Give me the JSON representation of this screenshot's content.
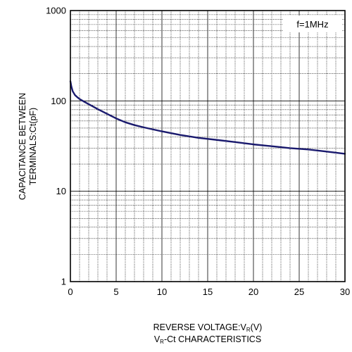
{
  "chart_data": {
    "type": "line",
    "title": "",
    "caption": {
      "pre": "V",
      "sub": "R",
      "post": "-Ct CHARACTERISTICS"
    },
    "xlabel": {
      "pre": "REVERSE VOLTAGE:V",
      "sub": "R",
      "post": "(V)"
    },
    "ylabel": {
      "line1": "CAPACITANCE BETWEEN",
      "line2": "TERMINALS:Ct(pF)"
    },
    "annotation": "f=1MHz",
    "x_scale": "linear",
    "y_scale": "log",
    "xlim": [
      0,
      30
    ],
    "ylim": [
      1,
      1000
    ],
    "x_ticks": [
      0,
      5,
      10,
      15,
      20,
      25,
      30
    ],
    "x_tick_labels": [
      "0",
      "5",
      "10",
      "15",
      "20",
      "25",
      "30"
    ],
    "y_ticks": [
      1,
      10,
      100,
      1000
    ],
    "y_tick_labels": [
      "1",
      "10",
      "100",
      "1000"
    ],
    "grid": true,
    "colors": {
      "curve": "#1a1a6e",
      "grid": "#000000",
      "axes": "#000000"
    },
    "series": [
      {
        "x": [
          0,
          0.1,
          0.25,
          0.5,
          0.75,
          1,
          1.5,
          2,
          3,
          4,
          5,
          6,
          7,
          8,
          10,
          12,
          14,
          16,
          18,
          20,
          22,
          24,
          26,
          28,
          30
        ],
        "y": [
          165,
          145,
          128,
          116,
          110,
          105,
          98,
          92,
          81,
          72,
          64,
          58,
          54,
          51,
          46,
          42,
          39,
          37,
          35,
          33,
          31.5,
          30,
          29,
          27.5,
          26
        ]
      }
    ]
  }
}
